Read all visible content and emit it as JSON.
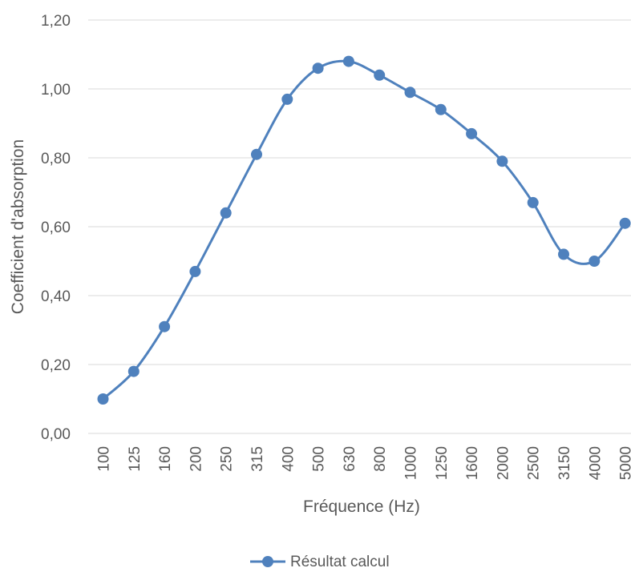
{
  "chart_data": {
    "type": "line",
    "smooth": true,
    "grid": "horizontal",
    "legend_position": "bottom",
    "xlabel": "Fréquence (Hz)",
    "ylabel": "Coefficient d'absorption",
    "ylim": [
      0,
      1.2
    ],
    "yticks": [
      "0,00",
      "0,20",
      "0,40",
      "0,60",
      "0,80",
      "1,00",
      "1,20"
    ],
    "categories": [
      "100",
      "125",
      "160",
      "200",
      "250",
      "315",
      "400",
      "500",
      "630",
      "800",
      "1000",
      "1250",
      "1600",
      "2000",
      "2500",
      "3150",
      "4000",
      "5000"
    ],
    "series": [
      {
        "name": "Résultat calcul",
        "color": "#4f81bd",
        "values": [
          0.1,
          0.18,
          0.31,
          0.47,
          0.64,
          0.81,
          0.97,
          1.06,
          1.08,
          1.04,
          0.99,
          0.94,
          0.87,
          0.79,
          0.67,
          0.52,
          0.5,
          0.61
        ]
      }
    ],
    "colors": {
      "line": "#4f81bd",
      "grid": "#d9d9d9",
      "text": "#595959"
    }
  }
}
